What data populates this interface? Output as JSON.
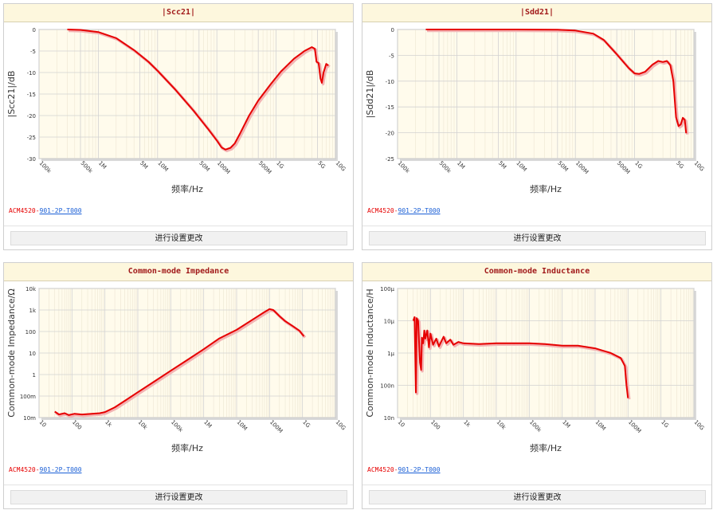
{
  "panels": [
    {
      "title": "|Scc21|",
      "part_prefix": "ACM4520-",
      "part_link": "901-2P-T000",
      "button": "进行设置更改",
      "chart_data": {
        "type": "line",
        "xscale": "log",
        "xlim": [
          100000,
          10000000000
        ],
        "ylim": [
          -30,
          0
        ],
        "ylabel": "|Scc21|/dB",
        "xlabel": "频率/Hz",
        "xticks": [
          [
            100000,
            "100k"
          ],
          [
            500000,
            "500k"
          ],
          [
            1000000,
            "1M"
          ],
          [
            5000000,
            "5M"
          ],
          [
            10000000,
            "10M"
          ],
          [
            50000000,
            "50M"
          ],
          [
            100000000,
            "100M"
          ],
          [
            500000000,
            "500M"
          ],
          [
            1000000000,
            "1G"
          ],
          [
            5000000000,
            "5G"
          ],
          [
            10000000000,
            "10G"
          ]
        ],
        "yticks": [
          [
            0,
            "0"
          ],
          [
            -5,
            "-5"
          ],
          [
            -10,
            "-10"
          ],
          [
            -15,
            "-15"
          ],
          [
            -20,
            "-20"
          ],
          [
            -25,
            "-25"
          ],
          [
            -30,
            "-30"
          ]
        ],
        "color": "#e60000",
        "points": [
          [
            300000,
            0
          ],
          [
            500000,
            -0.1
          ],
          [
            1000000,
            -0.6
          ],
          [
            2000000,
            -2
          ],
          [
            4000000,
            -4.8
          ],
          [
            7000000,
            -7.5
          ],
          [
            10000000,
            -9.6
          ],
          [
            20000000,
            -14
          ],
          [
            40000000,
            -18.8
          ],
          [
            70000000,
            -23
          ],
          [
            100000000,
            -25.8
          ],
          [
            120000000,
            -27.4
          ],
          [
            140000000,
            -27.9
          ],
          [
            170000000,
            -27.5
          ],
          [
            200000000,
            -26.5
          ],
          [
            250000000,
            -24
          ],
          [
            350000000,
            -20
          ],
          [
            500000000,
            -16.5
          ],
          [
            800000000,
            -12.8
          ],
          [
            1200000000,
            -9.8
          ],
          [
            2000000000,
            -6.8
          ],
          [
            3000000000,
            -5
          ],
          [
            4000000000,
            -4.1
          ],
          [
            4500000000,
            -4.5
          ],
          [
            4800000000,
            -7.5
          ],
          [
            5200000000,
            -7.8
          ],
          [
            5600000000,
            -11.4
          ],
          [
            5900000000,
            -12.4
          ],
          [
            6300000000,
            -10
          ],
          [
            7000000000,
            -8
          ],
          [
            7600000000,
            -8.4
          ]
        ]
      }
    },
    {
      "title": "|Sdd21|",
      "part_prefix": "ACM4520-",
      "part_link": "901-2P-T000",
      "button": "进行设置更改",
      "chart_data": {
        "type": "line",
        "xscale": "log",
        "xlim": [
          100000,
          10000000000
        ],
        "ylim": [
          -25,
          0
        ],
        "ylabel": "|Sdd21|/dB",
        "xlabel": "频率/Hz",
        "xticks": [
          [
            100000,
            "100k"
          ],
          [
            500000,
            "500k"
          ],
          [
            1000000,
            "1M"
          ],
          [
            5000000,
            "5M"
          ],
          [
            10000000,
            "10M"
          ],
          [
            50000000,
            "50M"
          ],
          [
            100000000,
            "100M"
          ],
          [
            500000000,
            "500M"
          ],
          [
            1000000000,
            "1G"
          ],
          [
            5000000000,
            "5G"
          ],
          [
            10000000000,
            "10G"
          ]
        ],
        "yticks": [
          [
            0,
            "0"
          ],
          [
            -5,
            "-5"
          ],
          [
            -10,
            "-10"
          ],
          [
            -15,
            "-15"
          ],
          [
            -20,
            "-20"
          ],
          [
            -25,
            "-25"
          ]
        ],
        "color": "#e60000",
        "points": [
          [
            300000,
            0
          ],
          [
            1000000,
            0
          ],
          [
            10000000,
            0
          ],
          [
            50000000,
            -0.05
          ],
          [
            100000000,
            -0.2
          ],
          [
            200000000,
            -0.8
          ],
          [
            300000000,
            -2
          ],
          [
            500000000,
            -4.8
          ],
          [
            800000000,
            -7.5
          ],
          [
            1000000000,
            -8.5
          ],
          [
            1200000000,
            -8.6
          ],
          [
            1500000000,
            -8.2
          ],
          [
            2000000000,
            -6.8
          ],
          [
            2500000000,
            -6.1
          ],
          [
            3000000000,
            -6.3
          ],
          [
            3500000000,
            -6.1
          ],
          [
            4000000000,
            -6.9
          ],
          [
            4500000000,
            -10
          ],
          [
            5000000000,
            -17
          ],
          [
            5500000000,
            -18.7
          ],
          [
            6000000000,
            -18.4
          ],
          [
            6500000000,
            -17.1
          ],
          [
            7000000000,
            -17.5
          ],
          [
            7400000000,
            -20.1
          ]
        ]
      }
    },
    {
      "title": "Common-mode Impedance",
      "part_prefix": "ACM4520-",
      "part_link": "901-2P-T000",
      "button": "进行设置更改",
      "chart_data": {
        "type": "line",
        "xscale": "log",
        "yscale": "log",
        "xlim": [
          10,
          10000000000
        ],
        "ylim": [
          0.01,
          10000
        ],
        "ylabel": "Common-mode Impedance/Ω",
        "xlabel": "频率/Hz",
        "xticks": [
          [
            10,
            "10"
          ],
          [
            100,
            "100"
          ],
          [
            1000,
            "1k"
          ],
          [
            10000,
            "10k"
          ],
          [
            100000,
            "100k"
          ],
          [
            1000000,
            "1M"
          ],
          [
            10000000,
            "10M"
          ],
          [
            100000000,
            "100M"
          ],
          [
            1000000000,
            "1G"
          ],
          [
            10000000000,
            "10G"
          ]
        ],
        "yticks": [
          [
            0.01,
            "10m"
          ],
          [
            0.1,
            "100m"
          ],
          [
            1,
            "1"
          ],
          [
            10,
            "10"
          ],
          [
            100,
            "100"
          ],
          [
            1000,
            "1k"
          ],
          [
            10000,
            "10k"
          ]
        ],
        "color": "#e60000",
        "points": [
          [
            30,
            0.019
          ],
          [
            40,
            0.014
          ],
          [
            60,
            0.016
          ],
          [
            80,
            0.013
          ],
          [
            120,
            0.015
          ],
          [
            200,
            0.014
          ],
          [
            400,
            0.015
          ],
          [
            700,
            0.016
          ],
          [
            1000,
            0.018
          ],
          [
            2000,
            0.03
          ],
          [
            4000,
            0.06
          ],
          [
            10000,
            0.15
          ],
          [
            30000,
            0.45
          ],
          [
            100000,
            1.5
          ],
          [
            300000,
            4.5
          ],
          [
            1000000,
            15
          ],
          [
            3000000,
            48
          ],
          [
            10000000,
            120
          ],
          [
            30000000,
            350
          ],
          [
            70000000,
            800
          ],
          [
            100000000,
            1100
          ],
          [
            130000000,
            1000
          ],
          [
            200000000,
            520
          ],
          [
            300000000,
            300
          ],
          [
            500000000,
            180
          ],
          [
            800000000,
            110
          ],
          [
            1100000000,
            60
          ]
        ]
      }
    },
    {
      "title": "Common-mode Inductance",
      "part_prefix": "ACM4520-",
      "part_link": "901-2P-T000",
      "button": "进行设置更改",
      "chart_data": {
        "type": "line",
        "xscale": "log",
        "yscale": "log",
        "xlim": [
          10,
          10000000000
        ],
        "ylim": [
          1e-08,
          0.0001
        ],
        "ylabel": "Common-mode Inductance/H",
        "xlabel": "频率/Hz",
        "xticks": [
          [
            10,
            "10"
          ],
          [
            100,
            "100"
          ],
          [
            1000,
            "1k"
          ],
          [
            10000,
            "10k"
          ],
          [
            100000,
            "100k"
          ],
          [
            1000000,
            "1M"
          ],
          [
            10000000,
            "10M"
          ],
          [
            100000000,
            "100M"
          ],
          [
            1000000000,
            "1G"
          ],
          [
            10000000000,
            "10G"
          ]
        ],
        "yticks": [
          [
            1e-08,
            "10n"
          ],
          [
            1e-07,
            "100n"
          ],
          [
            1e-06,
            "1μ"
          ],
          [
            1e-05,
            "10μ"
          ],
          [
            0.0001,
            "100μ"
          ]
        ],
        "color": "#e60000",
        "points": [
          [
            30,
            1e-05
          ],
          [
            33,
            1.3e-05
          ],
          [
            36,
            6e-08
          ],
          [
            38,
            1.2e-05
          ],
          [
            42,
            1e-05
          ],
          [
            48,
            5e-07
          ],
          [
            52,
            3e-07
          ],
          [
            55,
            3e-06
          ],
          [
            60,
            2e-06
          ],
          [
            65,
            5e-06
          ],
          [
            70,
            2.8e-06
          ],
          [
            80,
            5e-06
          ],
          [
            90,
            1.5e-06
          ],
          [
            100,
            4e-06
          ],
          [
            120,
            1.8e-06
          ],
          [
            150,
            2.8e-06
          ],
          [
            180,
            1.6e-06
          ],
          [
            250,
            3.2e-06
          ],
          [
            300,
            2e-06
          ],
          [
            400,
            2.6e-06
          ],
          [
            500,
            1.8e-06
          ],
          [
            700,
            2.2e-06
          ],
          [
            1000,
            2e-06
          ],
          [
            3000,
            1.9e-06
          ],
          [
            10000,
            2e-06
          ],
          [
            100000,
            2e-06
          ],
          [
            300000,
            1.9e-06
          ],
          [
            1000000,
            1.7e-06
          ],
          [
            3000000,
            1.7e-06
          ],
          [
            10000000,
            1.4e-06
          ],
          [
            30000000,
            1e-06
          ],
          [
            60000000,
            7e-07
          ],
          [
            80000000,
            4e-07
          ],
          [
            90000000,
            1e-07
          ],
          [
            100000000,
            4e-08
          ]
        ]
      }
    }
  ]
}
